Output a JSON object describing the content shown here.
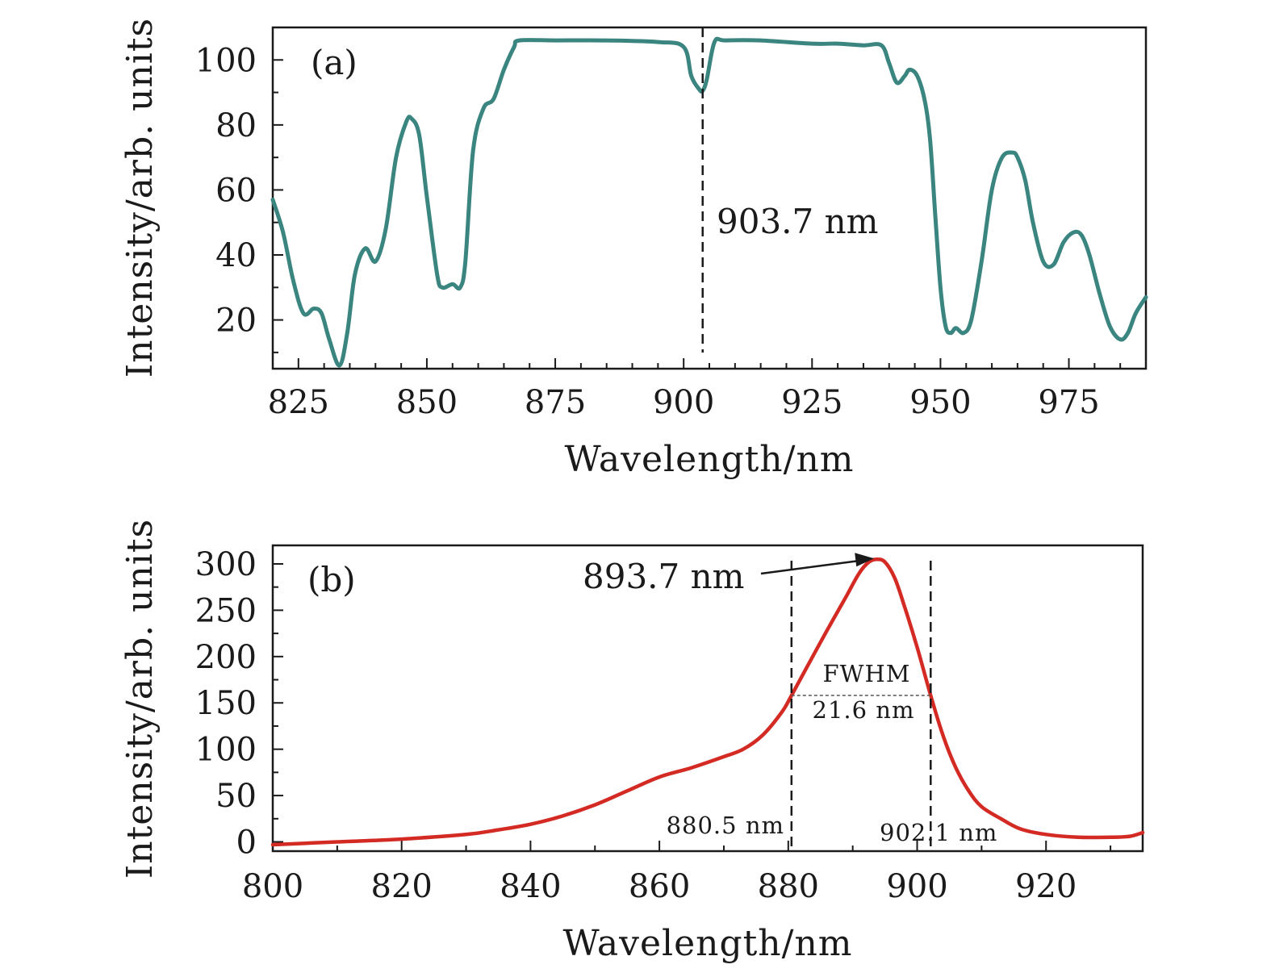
{
  "chart_data": [
    {
      "type": "line",
      "panel_label": "(a)",
      "xlabel": "Wavelength/nm",
      "ylabel": "Intensity/arb. units",
      "xlim": [
        820,
        990
      ],
      "ylim": [
        5,
        110
      ],
      "xticks": [
        825,
        850,
        875,
        900,
        925,
        950,
        975
      ],
      "yticks": [
        20,
        40,
        60,
        80,
        100
      ],
      "grid": false,
      "legend": "none",
      "colors": {
        "line": "#3b8580"
      },
      "series": [
        {
          "x": [
            820,
            822,
            824,
            826,
            828,
            829.5,
            831,
            833,
            834.5,
            836,
            838,
            840,
            842,
            844,
            846,
            847,
            848.5,
            850,
            852,
            853,
            855,
            856.5,
            857.5,
            859,
            861,
            863,
            865,
            867,
            868,
            875,
            885,
            895,
            900,
            901.5,
            903,
            903.7,
            904.5,
            906,
            908,
            915,
            925,
            930,
            935,
            938.5,
            940,
            941.5,
            943,
            944,
            945.5,
            947,
            948,
            949,
            950,
            951,
            952,
            953,
            954.5,
            956,
            958,
            960,
            962,
            964,
            965,
            966.5,
            968,
            970,
            972,
            974,
            976,
            977.5,
            979,
            981,
            983,
            985,
            986.5,
            988,
            990
          ],
          "y": [
            57,
            47,
            32,
            22,
            23.5,
            22,
            14,
            6,
            16,
            34,
            42,
            38,
            48,
            70,
            81,
            82,
            77,
            58,
            34,
            30,
            31,
            30,
            38,
            72,
            85,
            88,
            97,
            104,
            106,
            106,
            106,
            105.5,
            104,
            95,
            91,
            90.5,
            94,
            105.5,
            106,
            106,
            105,
            105,
            104.5,
            104.5,
            99,
            93,
            95,
            97,
            95,
            87,
            75,
            52,
            30,
            18,
            16,
            17.5,
            16,
            20,
            38,
            60,
            70,
            71.5,
            70,
            63,
            50,
            38,
            37,
            44,
            47,
            46,
            40,
            28,
            18,
            14,
            16,
            22,
            27
          ]
        }
      ],
      "annotations": [
        {
          "text": "903.7 nm",
          "x": 903.7,
          "style": "dashed vertical line"
        }
      ]
    },
    {
      "type": "line",
      "panel_label": "(b)",
      "xlabel": "Wavelength/nm",
      "ylabel": "Intensity/arb. units",
      "xlim": [
        800,
        935
      ],
      "ylim": [
        -10,
        320
      ],
      "xticks": [
        800,
        820,
        840,
        860,
        880,
        900,
        920
      ],
      "yticks": [
        0,
        50,
        100,
        150,
        200,
        250,
        300
      ],
      "grid": false,
      "legend": "none",
      "colors": {
        "line": "#d42a24"
      },
      "series": [
        {
          "x": [
            800,
            810,
            820,
            830,
            835,
            840,
            845,
            850,
            855,
            860,
            865,
            870,
            873,
            876,
            879,
            880.5,
            883,
            886,
            889,
            891,
            892.5,
            893.7,
            895,
            896.5,
            898,
            900,
            902.1,
            904,
            906,
            908,
            910,
            913,
            916,
            920,
            925,
            930,
            933,
            935
          ],
          "y": [
            -3,
            0,
            3,
            8,
            13,
            19,
            28,
            40,
            55,
            70,
            80,
            92,
            100,
            115,
            140,
            158,
            190,
            228,
            265,
            290,
            302,
            305,
            302,
            285,
            255,
            210,
            158,
            115,
            80,
            55,
            38,
            25,
            14,
            8,
            5,
            5,
            6,
            10
          ]
        }
      ],
      "annotations": [
        {
          "text": "893.7 nm",
          "x": 893.7,
          "y": 305,
          "style": "arrow"
        },
        {
          "text": "880.5 nm",
          "x": 880.5,
          "style": "dashed vertical line"
        },
        {
          "text": "902.1 nm",
          "x": 902.1,
          "style": "dashed vertical line"
        },
        {
          "text": "FWHM",
          "text2": "21.6 nm",
          "x1": 880.5,
          "x2": 902.1,
          "y": 158,
          "style": "dotted horizontal line"
        }
      ]
    }
  ]
}
